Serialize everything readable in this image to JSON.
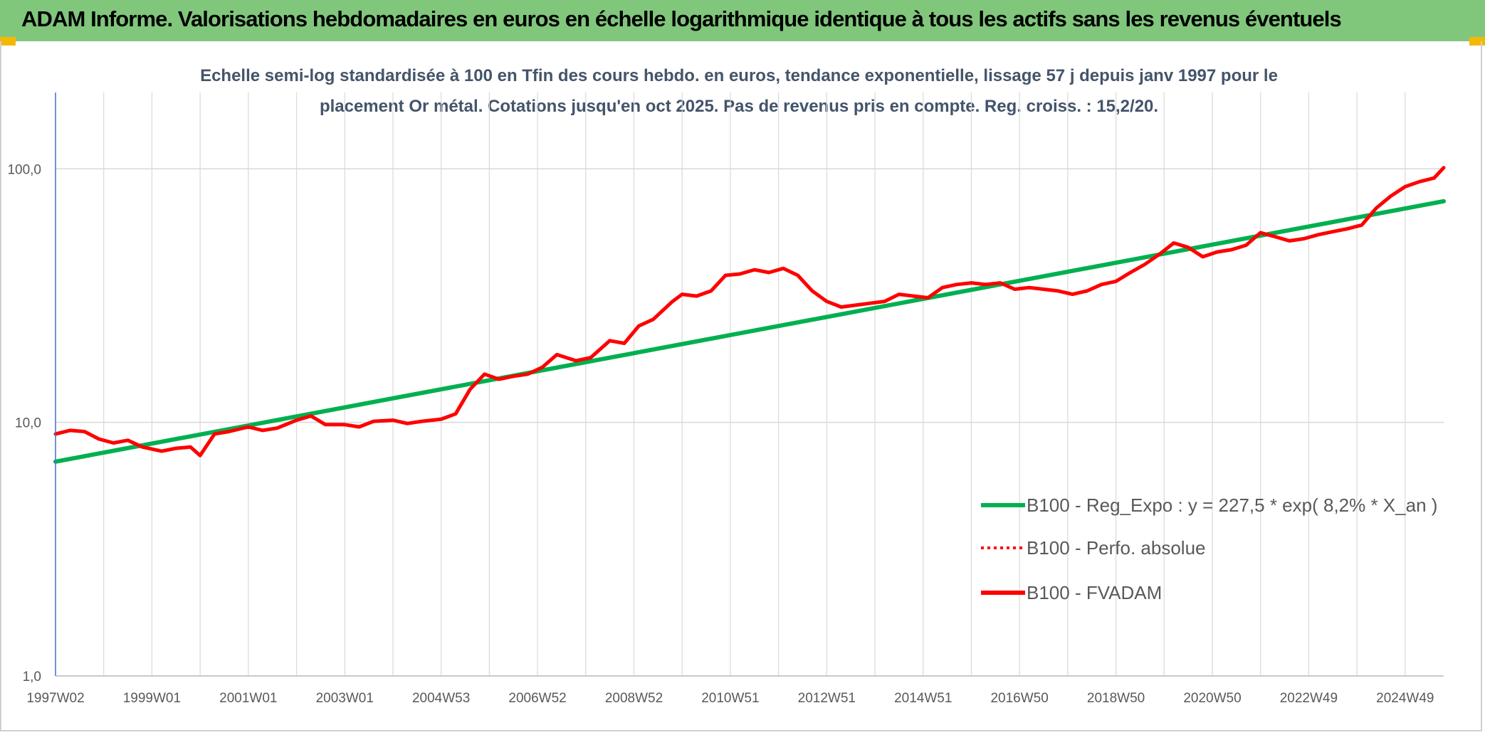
{
  "header": {
    "title": "ADAM Informe. Valorisations hebdomadaires en euros en échelle logarithmique identique à tous les actifs sans les revenus éventuels"
  },
  "colors": {
    "header_bg": "#80c77c",
    "regression": "#00b050",
    "fvadam": "#ff0000",
    "grid": "#d9d9d9",
    "axis": "#4472c4"
  },
  "chart_data": {
    "type": "line",
    "title_lines": [
      "Echelle semi-log standardisée à 100 en Tfin des cours hebdo. en euros, tendance exponentielle, lissage 57 j depuis janv 1997 pour le",
      "placement Or métal. Cotations jusqu'en oct 2025. Pas de revenus pris en compte. Reg. croiss. : 15,2/20."
    ],
    "y_scale": "log",
    "ylim": [
      1,
      200
    ],
    "y_ticks": [
      {
        "value": 1,
        "label": "1,0"
      },
      {
        "value": 10,
        "label": "10,0"
      },
      {
        "value": 100,
        "label": "100,0"
      }
    ],
    "xlim": [
      1997.0,
      2025.8
    ],
    "x_ticks": [
      {
        "value": 1997.0,
        "label": "1997W02"
      },
      {
        "value": 1999.0,
        "label": "1999W01"
      },
      {
        "value": 2001.0,
        "label": "2001W01"
      },
      {
        "value": 2003.0,
        "label": "2003W01"
      },
      {
        "value": 2005.0,
        "label": "2004W53"
      },
      {
        "value": 2007.0,
        "label": "2006W52"
      },
      {
        "value": 2009.0,
        "label": "2008W52"
      },
      {
        "value": 2011.0,
        "label": "2010W51"
      },
      {
        "value": 2013.0,
        "label": "2012W51"
      },
      {
        "value": 2015.0,
        "label": "2014W51"
      },
      {
        "value": 2017.0,
        "label": "2016W50"
      },
      {
        "value": 2019.0,
        "label": "2018W50"
      },
      {
        "value": 2021.0,
        "label": "2020W50"
      },
      {
        "value": 2023.0,
        "label": "2022W49"
      },
      {
        "value": 2025.0,
        "label": "2024W49"
      }
    ],
    "legend": [
      {
        "label": "B100 - Reg_Expo : y = 227,5 * exp( 8,2% *  X_an )",
        "style": "solid",
        "color": "#00b050"
      },
      {
        "label": "B100 - Perfo. absolue",
        "style": "dotted",
        "color": "#ff0000"
      },
      {
        "label": "B100 - FVADAM",
        "style": "solid",
        "color": "#ff0000"
      }
    ],
    "series": [
      {
        "name": "B100 - Reg_Expo",
        "color": "#00b050",
        "x": [
          1997.0,
          2025.8
        ],
        "y": [
          7.0,
          74.5
        ]
      },
      {
        "name": "B100 - FVADAM",
        "color": "#ff0000",
        "x": [
          1997.0,
          1997.3,
          1997.6,
          1997.9,
          1998.2,
          1998.5,
          1998.8,
          1999.2,
          1999.5,
          1999.8,
          2000.0,
          2000.3,
          2000.6,
          2001.0,
          2001.3,
          2001.6,
          2002.0,
          2002.3,
          2002.6,
          2003.0,
          2003.3,
          2003.6,
          2004.0,
          2004.3,
          2004.6,
          2005.0,
          2005.3,
          2005.6,
          2005.9,
          2006.2,
          2006.5,
          2006.8,
          2007.1,
          2007.4,
          2007.8,
          2008.1,
          2008.5,
          2008.8,
          2009.1,
          2009.4,
          2009.8,
          2010.0,
          2010.3,
          2010.6,
          2010.9,
          2011.2,
          2011.5,
          2011.8,
          2012.1,
          2012.4,
          2012.7,
          2013.0,
          2013.3,
          2013.6,
          2013.9,
          2014.2,
          2014.5,
          2014.8,
          2015.1,
          2015.4,
          2015.7,
          2016.0,
          2016.3,
          2016.6,
          2016.9,
          2017.2,
          2017.5,
          2017.8,
          2018.1,
          2018.4,
          2018.7,
          2019.0,
          2019.3,
          2019.6,
          2019.9,
          2020.2,
          2020.5,
          2020.8,
          2021.1,
          2021.4,
          2021.7,
          2022.0,
          2022.3,
          2022.6,
          2022.9,
          2023.2,
          2023.5,
          2023.8,
          2024.1,
          2024.4,
          2024.7,
          2025.0,
          2025.3,
          2025.6,
          2025.8
        ],
        "y": [
          9.0,
          9.3,
          9.2,
          8.6,
          8.3,
          8.5,
          8.0,
          7.7,
          7.9,
          8.0,
          7.4,
          9.0,
          9.2,
          9.6,
          9.3,
          9.5,
          10.2,
          10.6,
          9.8,
          9.8,
          9.6,
          10.1,
          10.2,
          9.9,
          10.1,
          10.3,
          10.8,
          13.5,
          15.5,
          14.8,
          15.2,
          15.5,
          16.5,
          18.5,
          17.5,
          18.0,
          21.0,
          20.5,
          24.0,
          25.5,
          30.0,
          32.0,
          31.5,
          33.0,
          38.0,
          38.5,
          40.0,
          39.0,
          40.5,
          38.0,
          33.0,
          30.0,
          28.5,
          29.0,
          29.5,
          30.0,
          32.0,
          31.5,
          31.0,
          34.0,
          35.0,
          35.5,
          35.0,
          35.5,
          33.5,
          34.0,
          33.5,
          33.0,
          32.0,
          33.0,
          35.0,
          36.0,
          39.0,
          42.0,
          46.0,
          51.0,
          49.0,
          45.0,
          47.0,
          48.0,
          50.0,
          56.0,
          54.0,
          52.0,
          53.0,
          55.0,
          56.5,
          58.0,
          60.0,
          70.0,
          78.0,
          85.0,
          89.0,
          92.0,
          101.0
        ]
      }
    ]
  }
}
